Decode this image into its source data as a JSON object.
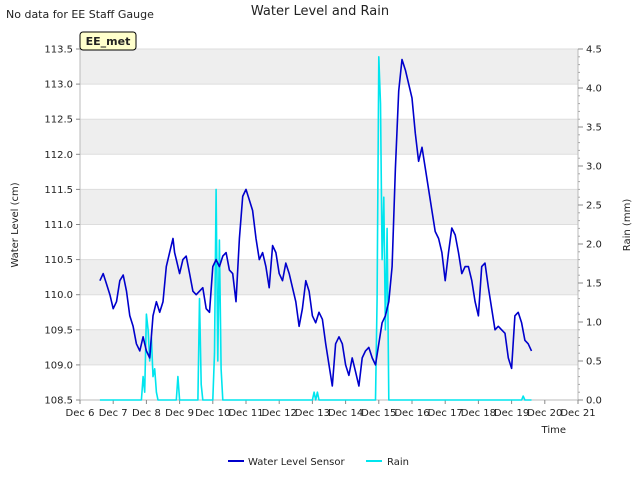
{
  "chart_data": {
    "type": "line",
    "title": "Water Level and Rain",
    "no_data_note": "No data for EE Staff Gauge",
    "station_badge": "EE_met",
    "xlabel": "Time",
    "ylabel_left": "Water Level (cm)",
    "ylabel_right": "Rain (mm)",
    "x_ticks": [
      "Dec 6",
      "Dec 7",
      "Dec 8",
      "Dec 9",
      "Dec 10",
      "Dec 11",
      "Dec 12",
      "Dec 13",
      "Dec 14",
      "Dec 15",
      "Dec 16",
      "Dec 17",
      "Dec 18",
      "Dec 19",
      "Dec 20",
      "Dec 21"
    ],
    "xlim": [
      6,
      21
    ],
    "ylim_left": [
      108.5,
      113.5
    ],
    "yticks_left": [
      "108.5",
      "109.0",
      "109.5",
      "110.0",
      "110.5",
      "111.0",
      "111.5",
      "112.0",
      "112.5",
      "113.0",
      "113.5"
    ],
    "ylim_right": [
      0.0,
      4.5
    ],
    "yticks_right": [
      "0.0",
      "0.5",
      "1.0",
      "1.5",
      "2.0",
      "2.5",
      "3.0",
      "3.5",
      "4.0",
      "4.5"
    ],
    "grid": true,
    "legend_position": "bottom-center",
    "colors": {
      "water": "#0000cc",
      "rain": "#00e5ee",
      "band": "#eeeeee",
      "badge_bg": "#ffffcc",
      "badge_text": "#990000"
    },
    "series": [
      {
        "name": "Water Level Sensor",
        "axis": "left",
        "points": [
          [
            6.6,
            110.2
          ],
          [
            6.7,
            110.3
          ],
          [
            6.8,
            110.15
          ],
          [
            6.9,
            110.0
          ],
          [
            7.0,
            109.8
          ],
          [
            7.1,
            109.9
          ],
          [
            7.2,
            110.2
          ],
          [
            7.3,
            110.28
          ],
          [
            7.4,
            110.05
          ],
          [
            7.5,
            109.7
          ],
          [
            7.6,
            109.55
          ],
          [
            7.7,
            109.3
          ],
          [
            7.8,
            109.2
          ],
          [
            7.9,
            109.4
          ],
          [
            8.0,
            109.2
          ],
          [
            8.1,
            109.1
          ],
          [
            8.2,
            109.7
          ],
          [
            8.3,
            109.9
          ],
          [
            8.4,
            109.75
          ],
          [
            8.5,
            109.9
          ],
          [
            8.6,
            110.4
          ],
          [
            8.7,
            110.6
          ],
          [
            8.8,
            110.8
          ],
          [
            8.85,
            110.6
          ],
          [
            8.9,
            110.5
          ],
          [
            9.0,
            110.3
          ],
          [
            9.1,
            110.5
          ],
          [
            9.2,
            110.55
          ],
          [
            9.3,
            110.3
          ],
          [
            9.4,
            110.05
          ],
          [
            9.5,
            110.0
          ],
          [
            9.6,
            110.05
          ],
          [
            9.7,
            110.1
          ],
          [
            9.8,
            109.8
          ],
          [
            9.9,
            109.75
          ],
          [
            10.0,
            110.4
          ],
          [
            10.1,
            110.5
          ],
          [
            10.2,
            110.4
          ],
          [
            10.3,
            110.55
          ],
          [
            10.4,
            110.6
          ],
          [
            10.5,
            110.35
          ],
          [
            10.6,
            110.3
          ],
          [
            10.7,
            109.9
          ],
          [
            10.8,
            110.8
          ],
          [
            10.9,
            111.4
          ],
          [
            11.0,
            111.5
          ],
          [
            11.1,
            111.35
          ],
          [
            11.2,
            111.2
          ],
          [
            11.3,
            110.8
          ],
          [
            11.4,
            110.5
          ],
          [
            11.5,
            110.6
          ],
          [
            11.6,
            110.4
          ],
          [
            11.7,
            110.1
          ],
          [
            11.8,
            110.7
          ],
          [
            11.9,
            110.6
          ],
          [
            12.0,
            110.3
          ],
          [
            12.1,
            110.2
          ],
          [
            12.2,
            110.45
          ],
          [
            12.3,
            110.3
          ],
          [
            12.4,
            110.1
          ],
          [
            12.5,
            109.9
          ],
          [
            12.6,
            109.55
          ],
          [
            12.7,
            109.8
          ],
          [
            12.8,
            110.2
          ],
          [
            12.9,
            110.05
          ],
          [
            13.0,
            109.7
          ],
          [
            13.1,
            109.6
          ],
          [
            13.2,
            109.75
          ],
          [
            13.3,
            109.65
          ],
          [
            13.4,
            109.3
          ],
          [
            13.5,
            109.0
          ],
          [
            13.6,
            108.7
          ],
          [
            13.7,
            109.3
          ],
          [
            13.8,
            109.4
          ],
          [
            13.9,
            109.3
          ],
          [
            14.0,
            109.0
          ],
          [
            14.1,
            108.85
          ],
          [
            14.2,
            109.1
          ],
          [
            14.3,
            108.9
          ],
          [
            14.4,
            108.7
          ],
          [
            14.5,
            109.1
          ],
          [
            14.6,
            109.2
          ],
          [
            14.7,
            109.25
          ],
          [
            14.8,
            109.1
          ],
          [
            14.9,
            109.0
          ],
          [
            15.0,
            109.3
          ],
          [
            15.1,
            109.6
          ],
          [
            15.2,
            109.7
          ],
          [
            15.3,
            109.9
          ],
          [
            15.4,
            110.4
          ],
          [
            15.5,
            111.8
          ],
          [
            15.6,
            112.9
          ],
          [
            15.7,
            113.35
          ],
          [
            15.8,
            113.2
          ],
          [
            15.9,
            113.0
          ],
          [
            16.0,
            112.8
          ],
          [
            16.1,
            112.3
          ],
          [
            16.2,
            111.9
          ],
          [
            16.3,
            112.1
          ],
          [
            16.4,
            111.8
          ],
          [
            16.5,
            111.5
          ],
          [
            16.6,
            111.2
          ],
          [
            16.7,
            110.9
          ],
          [
            16.8,
            110.8
          ],
          [
            16.9,
            110.6
          ],
          [
            17.0,
            110.2
          ],
          [
            17.1,
            110.6
          ],
          [
            17.2,
            110.95
          ],
          [
            17.3,
            110.85
          ],
          [
            17.4,
            110.6
          ],
          [
            17.5,
            110.3
          ],
          [
            17.6,
            110.4
          ],
          [
            17.7,
            110.4
          ],
          [
            17.8,
            110.2
          ],
          [
            17.9,
            109.9
          ],
          [
            18.0,
            109.7
          ],
          [
            18.1,
            110.4
          ],
          [
            18.2,
            110.45
          ],
          [
            18.3,
            110.1
          ],
          [
            18.4,
            109.8
          ],
          [
            18.5,
            109.5
          ],
          [
            18.6,
            109.55
          ],
          [
            18.7,
            109.5
          ],
          [
            18.8,
            109.45
          ],
          [
            18.9,
            109.1
          ],
          [
            19.0,
            108.95
          ],
          [
            19.1,
            109.7
          ],
          [
            19.2,
            109.75
          ],
          [
            19.3,
            109.6
          ],
          [
            19.4,
            109.35
          ],
          [
            19.5,
            109.3
          ],
          [
            19.6,
            109.2
          ]
        ]
      },
      {
        "name": "Rain",
        "axis": "right",
        "points": [
          [
            6.6,
            0.0
          ],
          [
            7.85,
            0.0
          ],
          [
            7.9,
            0.3
          ],
          [
            7.95,
            0.1
          ],
          [
            8.0,
            1.1
          ],
          [
            8.05,
            0.9
          ],
          [
            8.1,
            0.5
          ],
          [
            8.15,
            0.8
          ],
          [
            8.2,
            0.3
          ],
          [
            8.25,
            0.4
          ],
          [
            8.3,
            0.1
          ],
          [
            8.35,
            0.0
          ],
          [
            8.9,
            0.0
          ],
          [
            8.95,
            0.3
          ],
          [
            9.0,
            0.0
          ],
          [
            9.55,
            0.0
          ],
          [
            9.6,
            1.3
          ],
          [
            9.65,
            0.2
          ],
          [
            9.7,
            0.0
          ],
          [
            10.0,
            0.0
          ],
          [
            10.05,
            0.6
          ],
          [
            10.1,
            2.7
          ],
          [
            10.15,
            0.5
          ],
          [
            10.2,
            2.05
          ],
          [
            10.25,
            0.4
          ],
          [
            10.3,
            0.0
          ],
          [
            13.0,
            0.0
          ],
          [
            13.05,
            0.1
          ],
          [
            13.1,
            0.0
          ],
          [
            13.15,
            0.1
          ],
          [
            13.2,
            0.0
          ],
          [
            14.9,
            0.0
          ],
          [
            14.95,
            1.3
          ],
          [
            15.0,
            4.4
          ],
          [
            15.05,
            3.8
          ],
          [
            15.1,
            1.8
          ],
          [
            15.15,
            2.6
          ],
          [
            15.2,
            0.9
          ],
          [
            15.25,
            2.2
          ],
          [
            15.3,
            0.0
          ],
          [
            19.3,
            0.0
          ],
          [
            19.35,
            0.05
          ],
          [
            19.4,
            0.0
          ],
          [
            19.6,
            0.0
          ]
        ]
      }
    ]
  }
}
